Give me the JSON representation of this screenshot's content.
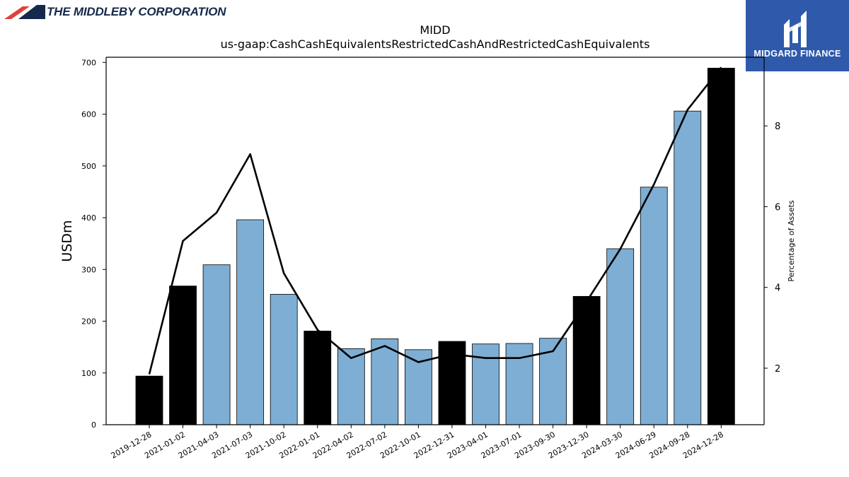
{
  "brand": {
    "left_name": "THE MIDDLEBY CORPORATION",
    "right_name": "MIDGARD FINANCE"
  },
  "colors": {
    "bar_annual": "#000000",
    "bar_quarterly": "#7eaed3",
    "line": "#000000",
    "brand_navy": "#14294b",
    "brand_red": "#e2403c",
    "brand_blue": "#2f5aab"
  },
  "chart_data": {
    "type": "bar",
    "title": "MIDD",
    "subtitle": "us-gaap:CashCashEquivalentsRestrictedCashAndRestrictedCashEquivalents",
    "ylabel": "USDm",
    "y2label": "Percentage of Assets",
    "ylim": [
      0,
      710
    ],
    "y2lim": [
      0.6,
      9.7
    ],
    "yticks": [
      0,
      100,
      200,
      300,
      400,
      500,
      600,
      700
    ],
    "y2ticks": [
      2,
      4,
      6,
      8
    ],
    "grid": false,
    "categories": [
      "2019-12-28",
      "2021-01-02",
      "2021-04-03",
      "2021-07-03",
      "2021-10-02",
      "2022-01-01",
      "2022-04-02",
      "2022-07-02",
      "2022-10-01",
      "2022-12-31",
      "2023-04-01",
      "2023-07-01",
      "2023-09-30",
      "2023-12-30",
      "2024-03-30",
      "2024-06-29",
      "2024-09-28",
      "2024-12-28"
    ],
    "series": [
      {
        "type": "bar",
        "values": [
          94,
          268,
          309,
          396,
          252,
          181,
          147,
          166,
          145,
          161,
          156,
          157,
          167,
          248,
          340,
          459,
          606,
          689
        ],
        "annual": [
          true,
          true,
          false,
          false,
          false,
          true,
          false,
          false,
          false,
          true,
          false,
          false,
          false,
          true,
          false,
          false,
          false,
          true
        ]
      },
      {
        "type": "line",
        "axis": "right",
        "values": [
          1.85,
          5.15,
          5.85,
          7.3,
          4.35,
          2.95,
          2.25,
          2.55,
          2.15,
          2.35,
          2.25,
          2.25,
          2.42,
          3.65,
          4.95,
          6.55,
          8.4,
          9.45
        ]
      }
    ]
  }
}
